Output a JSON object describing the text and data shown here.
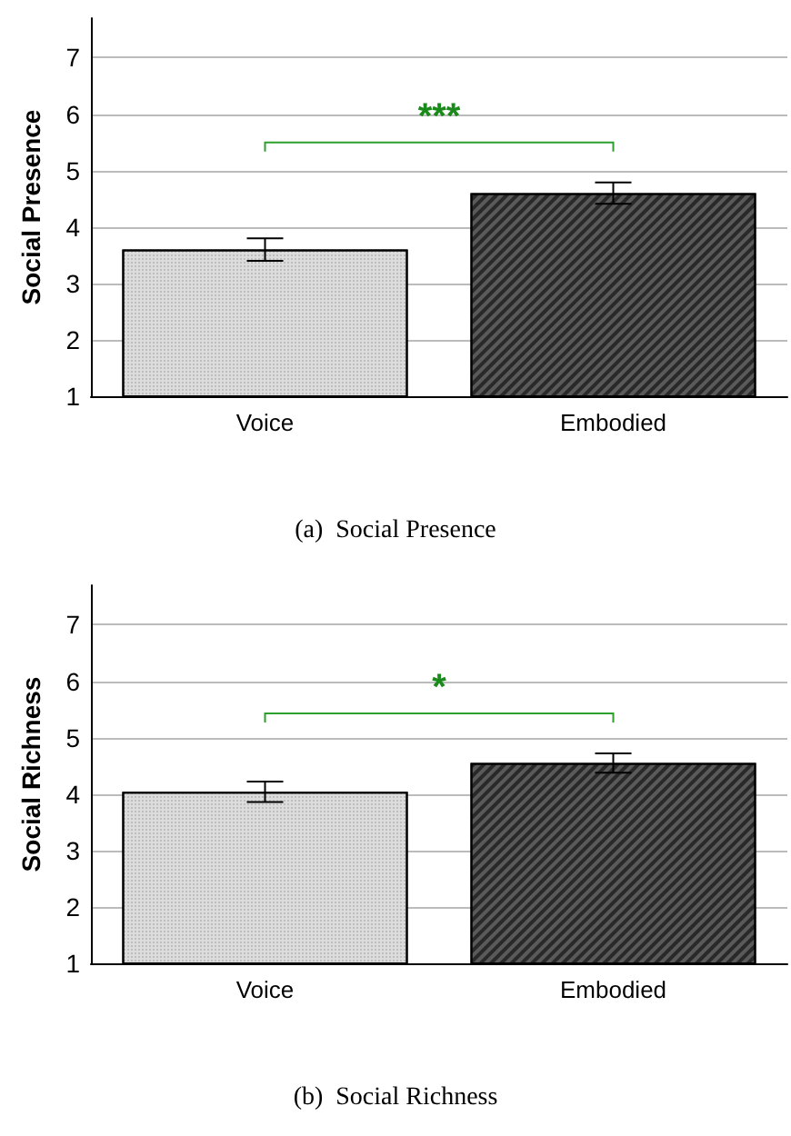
{
  "chart_data": [
    {
      "type": "bar",
      "title": "(a)  Social Presence",
      "ylabel": "Social Presence",
      "categories": [
        "Voice",
        "Embodied"
      ],
      "values": [
        3.6,
        4.6
      ],
      "errors": [
        0.2,
        0.19
      ],
      "colors": [
        "#dcdcdc",
        "#5a5a5a"
      ],
      "ylim": [
        1,
        7.7
      ],
      "yticks": [
        1,
        2,
        3,
        4,
        5,
        6,
        7
      ],
      "grid": "y",
      "annotations": [
        "***"
      ]
    },
    {
      "type": "bar",
      "title": "(b)  Social Richness",
      "ylabel": "Social Richness",
      "categories": [
        "Voice",
        "Embodied"
      ],
      "values": [
        4.04,
        4.55
      ],
      "errors": [
        0.18,
        0.17
      ],
      "colors": [
        "#dcdcdc",
        "#5a5a5a"
      ],
      "ylim": [
        1,
        7.7
      ],
      "yticks": [
        1,
        2,
        3,
        4,
        5,
        6,
        7
      ],
      "grid": "y",
      "annotations": [
        "*"
      ]
    }
  ]
}
